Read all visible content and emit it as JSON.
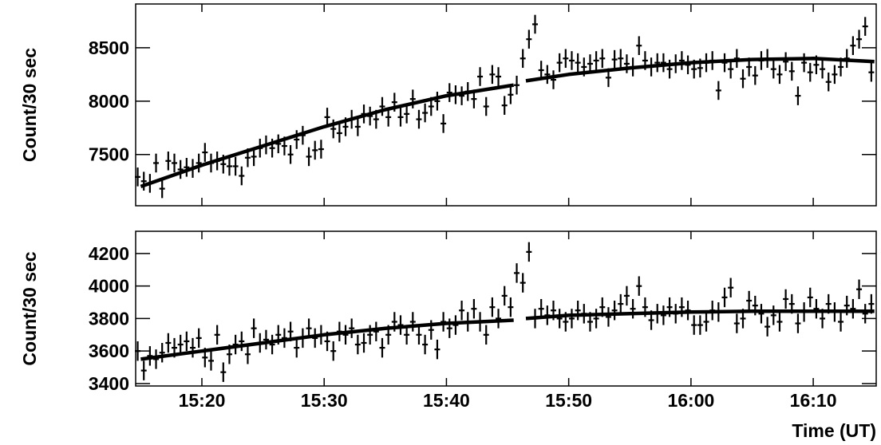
{
  "chart_data": [
    {
      "type": "scatter",
      "y_label": "Count/30 sec",
      "color": "#000000",
      "ylim": [
        7020,
        8910
      ],
      "yticks": [
        7500,
        8000,
        8500
      ],
      "xlim": [
        "15:14:35",
        "16:15:09"
      ],
      "yerr": 88,
      "x": [
        "15:14:45",
        "15:15:15",
        "15:15:45",
        "15:16:15",
        "15:16:45",
        "15:17:15",
        "15:17:45",
        "15:18:15",
        "15:18:45",
        "15:19:15",
        "15:19:45",
        "15:20:15",
        "15:20:45",
        "15:21:15",
        "15:21:45",
        "15:22:15",
        "15:22:45",
        "15:23:15",
        "15:23:45",
        "15:24:15",
        "15:24:45",
        "15:25:15",
        "15:25:45",
        "15:26:15",
        "15:26:45",
        "15:27:15",
        "15:27:45",
        "15:28:15",
        "15:28:45",
        "15:29:15",
        "15:29:45",
        "15:30:15",
        "15:30:45",
        "15:31:15",
        "15:31:45",
        "15:32:15",
        "15:32:45",
        "15:33:15",
        "15:33:45",
        "15:34:15",
        "15:34:45",
        "15:35:15",
        "15:35:45",
        "15:36:15",
        "15:36:45",
        "15:37:15",
        "15:37:45",
        "15:38:15",
        "15:38:45",
        "15:39:15",
        "15:39:45",
        "15:40:15",
        "15:40:45",
        "15:41:15",
        "15:41:45",
        "15:42:15",
        "15:42:45",
        "15:43:15",
        "15:43:45",
        "15:44:15",
        "15:44:45",
        "15:45:15",
        "15:45:45",
        "15:46:15",
        "15:46:45",
        "15:47:15",
        "15:47:45",
        "15:48:15",
        "15:48:45",
        "15:49:15",
        "15:49:45",
        "15:50:15",
        "15:50:45",
        "15:51:15",
        "15:51:45",
        "15:52:15",
        "15:52:45",
        "15:53:15",
        "15:53:45",
        "15:54:15",
        "15:54:45",
        "15:55:15",
        "15:55:45",
        "15:56:15",
        "15:56:45",
        "15:57:15",
        "15:57:45",
        "15:58:15",
        "15:58:45",
        "15:59:15",
        "15:59:45",
        "16:00:15",
        "16:00:45",
        "16:01:15",
        "16:01:45",
        "16:02:15",
        "16:02:45",
        "16:03:15",
        "16:03:45",
        "16:04:15",
        "16:04:45",
        "16:05:15",
        "16:05:45",
        "16:06:15",
        "16:06:45",
        "16:07:15",
        "16:07:45",
        "16:08:15",
        "16:08:45",
        "16:09:15",
        "16:09:45",
        "16:10:15",
        "16:10:45",
        "16:11:15",
        "16:11:45",
        "16:12:15",
        "16:12:45",
        "16:13:15",
        "16:13:45",
        "16:14:15",
        "16:14:45"
      ],
      "values": [
        7290,
        7250,
        7230,
        7420,
        7180,
        7440,
        7420,
        7360,
        7380,
        7370,
        7420,
        7520,
        7420,
        7440,
        7410,
        7390,
        7390,
        7300,
        7470,
        7480,
        7560,
        7590,
        7560,
        7600,
        7580,
        7500,
        7640,
        7680,
        7480,
        7540,
        7550,
        7850,
        7740,
        7700,
        7760,
        7830,
        7760,
        7880,
        7860,
        7830,
        7950,
        7850,
        7990,
        7850,
        7880,
        8020,
        7830,
        7890,
        7950,
        8000,
        7790,
        8080,
        8060,
        8050,
        8090,
        8020,
        8230,
        7950,
        8250,
        8230,
        7960,
        8060,
        8150,
        8400,
        8580,
        8720,
        8290,
        8250,
        8200,
        8360,
        8400,
        8380,
        8360,
        8320,
        8350,
        8380,
        8400,
        8220,
        8390,
        8400,
        8350,
        8320,
        8520,
        8380,
        8320,
        8360,
        8360,
        8300,
        8350,
        8380,
        8340,
        8300,
        8310,
        8360,
        8380,
        8100,
        8360,
        8300,
        8400,
        8210,
        8320,
        8240,
        8380,
        8400,
        8300,
        8250,
        8370,
        8280,
        8050,
        8360,
        8270,
        8340,
        8300,
        8180,
        8250,
        8320,
        8400,
        8520,
        8580,
        8700,
        8270
      ],
      "fit": {
        "x": [
          "15:15:00",
          "15:20:00",
          "15:25:00",
          "15:30:00",
          "15:35:00",
          "15:40:00",
          "15:45:30",
          "15:46:00",
          "15:46:30",
          "15:50:00",
          "15:55:00",
          "16:00:00",
          "16:05:00",
          "16:10:00",
          "16:15:00"
        ],
        "values": [
          7200,
          7400,
          7580,
          7760,
          7920,
          8050,
          8150,
          null,
          8190,
          8250,
          8310,
          8360,
          8390,
          8400,
          8370
        ]
      }
    },
    {
      "type": "scatter",
      "y_label": "Count/30 sec",
      "x_label": "Time (UT)",
      "color": "#000000",
      "ylim": [
        3385,
        4337
      ],
      "yticks": [
        3400,
        3600,
        3800,
        4000,
        4200
      ],
      "xlim": [
        "15:14:35",
        "16:15:09"
      ],
      "xticks": [
        "15:20",
        "15:30",
        "15:40",
        "15:50",
        "16:00",
        "16:10"
      ],
      "yerr": 60,
      "x": [
        "15:14:45",
        "15:15:15",
        "15:15:45",
        "15:16:15",
        "15:16:45",
        "15:17:15",
        "15:17:45",
        "15:18:15",
        "15:18:45",
        "15:19:15",
        "15:19:45",
        "15:20:15",
        "15:20:45",
        "15:21:15",
        "15:21:45",
        "15:22:15",
        "15:22:45",
        "15:23:15",
        "15:23:45",
        "15:24:15",
        "15:24:45",
        "15:25:15",
        "15:25:45",
        "15:26:15",
        "15:26:45",
        "15:27:15",
        "15:27:45",
        "15:28:15",
        "15:28:45",
        "15:29:15",
        "15:29:45",
        "15:30:15",
        "15:30:45",
        "15:31:15",
        "15:31:45",
        "15:32:15",
        "15:32:45",
        "15:33:15",
        "15:33:45",
        "15:34:15",
        "15:34:45",
        "15:35:15",
        "15:35:45",
        "15:36:15",
        "15:36:45",
        "15:37:15",
        "15:37:45",
        "15:38:15",
        "15:38:45",
        "15:39:15",
        "15:39:45",
        "15:40:15",
        "15:40:45",
        "15:41:15",
        "15:41:45",
        "15:42:15",
        "15:42:45",
        "15:43:15",
        "15:43:45",
        "15:44:15",
        "15:44:45",
        "15:45:15",
        "15:45:45",
        "15:46:15",
        "15:46:45",
        "15:47:15",
        "15:47:45",
        "15:48:15",
        "15:48:45",
        "15:49:15",
        "15:49:45",
        "15:50:15",
        "15:50:45",
        "15:51:15",
        "15:51:45",
        "15:52:15",
        "15:52:45",
        "15:53:15",
        "15:53:45",
        "15:54:15",
        "15:54:45",
        "15:55:15",
        "15:55:45",
        "15:56:15",
        "15:56:45",
        "15:57:15",
        "15:57:45",
        "15:58:15",
        "15:58:45",
        "15:59:15",
        "15:59:45",
        "16:00:15",
        "16:00:45",
        "16:01:15",
        "16:01:45",
        "16:02:15",
        "16:02:45",
        "16:03:15",
        "16:03:45",
        "16:04:15",
        "16:04:45",
        "16:05:15",
        "16:05:45",
        "16:06:15",
        "16:06:45",
        "16:07:15",
        "16:07:45",
        "16:08:15",
        "16:08:45",
        "16:09:15",
        "16:09:45",
        "16:10:15",
        "16:10:45",
        "16:11:15",
        "16:11:45",
        "16:12:15",
        "16:12:45",
        "16:13:15",
        "16:13:45",
        "16:14:15",
        "16:14:45"
      ],
      "values": [
        3600,
        3480,
        3570,
        3550,
        3590,
        3650,
        3620,
        3640,
        3660,
        3620,
        3680,
        3560,
        3540,
        3700,
        3470,
        3580,
        3640,
        3660,
        3580,
        3740,
        3650,
        3670,
        3640,
        3700,
        3680,
        3720,
        3620,
        3680,
        3740,
        3680,
        3700,
        3660,
        3600,
        3720,
        3700,
        3740,
        3640,
        3650,
        3700,
        3720,
        3620,
        3700,
        3780,
        3760,
        3700,
        3780,
        3700,
        3640,
        3730,
        3610,
        3780,
        3740,
        3760,
        3850,
        3780,
        3860,
        3780,
        3700,
        3870,
        3800,
        3940,
        3870,
        4080,
        4020,
        4210,
        3800,
        3860,
        3820,
        3850,
        3800,
        3780,
        3800,
        3850,
        3830,
        3780,
        3800,
        3870,
        3810,
        3850,
        3890,
        3940,
        3860,
        4000,
        3870,
        3790,
        3830,
        3820,
        3870,
        3830,
        3870,
        3850,
        3760,
        3760,
        3780,
        3850,
        3840,
        3930,
        3990,
        3770,
        3800,
        3910,
        3880,
        3830,
        3750,
        3820,
        3780,
        3920,
        3890,
        3770,
        3840,
        3930,
        3860,
        3800,
        3890,
        3840,
        3780,
        3880,
        3860,
        3980,
        3830,
        3890
      ],
      "fit": {
        "x": [
          "15:15:00",
          "15:20:00",
          "15:25:00",
          "15:30:00",
          "15:35:00",
          "15:40:00",
          "15:45:30",
          "15:46:00",
          "15:46:30",
          "15:50:00",
          "15:55:00",
          "16:00:00",
          "16:05:00",
          "16:10:00",
          "16:15:00"
        ],
        "values": [
          3550,
          3600,
          3650,
          3700,
          3740,
          3770,
          3790,
          null,
          3800,
          3820,
          3830,
          3840,
          3845,
          3845,
          3845
        ]
      }
    }
  ]
}
